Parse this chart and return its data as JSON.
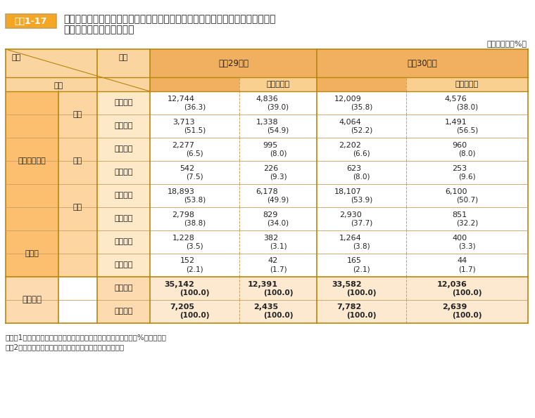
{
  "title_box": "資料1-17",
  "title": "国家公務員採用一般職試験（大卒程度試験）の国・公・私立別出身大学（含大学\n院）別申込者数・合格者数",
  "unit": "（単位：人、%）",
  "col_headers": [
    "平成29年度",
    "うち女性数",
    "平成30年度",
    "うち女性数"
  ],
  "row_headers_level1": [
    "大学・大学院",
    "その他",
    "合　　計"
  ],
  "row_headers_level2": [
    "国立",
    "公立",
    "私立"
  ],
  "row_headers_level3": [
    "申込者数",
    "合格者数"
  ],
  "data": {
    "国立": {
      "申込者数": [
        "12,744\n(36.3)",
        "4,836\n(39.0)",
        "12,009\n(35.8)",
        "4,576\n(38.0)"
      ],
      "合格者数": [
        "3,713\n(51.5)",
        "1,338\n(54.9)",
        "4,064\n(52.2)",
        "1,491\n(56.5)"
      ]
    },
    "公立": {
      "申込者数": [
        "2,277\n(6.5)",
        "995\n(8.0)",
        "2,202\n(6.6)",
        "960\n(8.0)"
      ],
      "合格者数": [
        "542\n(7.5)",
        "226\n(9.3)",
        "623\n(8.0)",
        "253\n(9.6)"
      ]
    },
    "私立": {
      "申込者数": [
        "18,893\n(53.8)",
        "6,178\n(49.9)",
        "18,107\n(53.9)",
        "6,100\n(50.7)"
      ],
      "合格者数": [
        "2,798\n(38.8)",
        "829\n(34.0)",
        "2,930\n(37.7)",
        "851\n(32.2)"
      ]
    },
    "その他": {
      "申込者数": [
        "1,228\n(3.5)",
        "382\n(3.1)",
        "1,264\n(3.8)",
        "400\n(3.3)"
      ],
      "合格者数": [
        "152\n(2.1)",
        "42\n(1.7)",
        "165\n(2.1)",
        "44\n(1.7)"
      ]
    },
    "合計": {
      "申込者数": [
        "35,142\n(100.0)",
        "12,391\n(100.0)",
        "33,582\n(100.0)",
        "12,036\n(100.0)"
      ],
      "合格者数": [
        "7,205\n(100.0)",
        "2,435\n(100.0)",
        "7,782\n(100.0)",
        "2,639\n(100.0)"
      ]
    }
  },
  "colors": {
    "header_orange": "#F5A623",
    "header_light_orange": "#FAD5A0",
    "cell_light": "#FFF5E6",
    "cell_white": "#FFFFFF",
    "cell_total": "#FDDCB5",
    "border_dark": "#C8A060",
    "border_light": "#E8C080",
    "title_box_bg": "#F5A623",
    "title_box_border": "#C8A060",
    "header_bg": "#F5C070",
    "subheader_bg": "#FAD090",
    "level1_bg": "#FBBF6F",
    "level2_bg": "#FCD5A0",
    "item_bg": "#FDE8C8",
    "total_bg": "#FDDAB0",
    "total_item_bg": "#FDE8D0"
  },
  "notes": [
    "（注）1　（　）内は、申込者総数又は合格者総数に対する割合（%）を示す。",
    "　　2　「その他」は、短大・高専、外国の大学等である。"
  ]
}
